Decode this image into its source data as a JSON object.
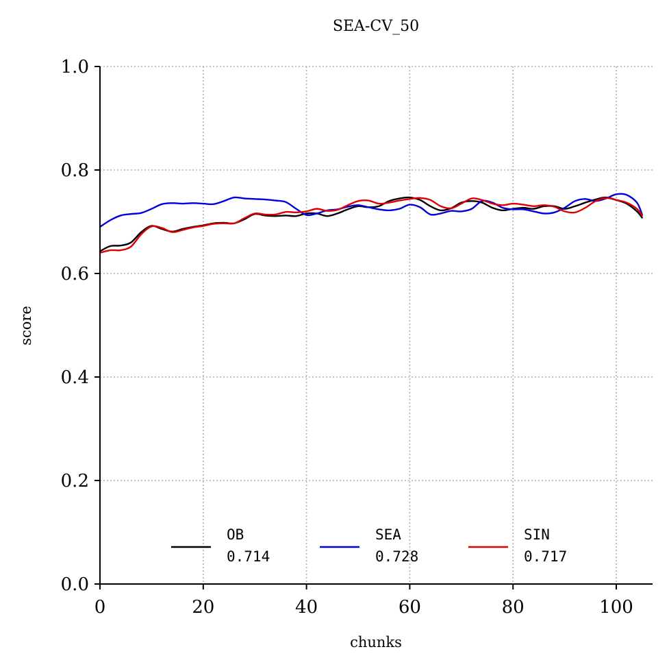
{
  "chart_data": {
    "type": "line",
    "title": "SEA-CV_50",
    "xlabel": "chunks",
    "ylabel": "score",
    "xlim": [
      0,
      107
    ],
    "ylim": [
      0.0,
      1.0
    ],
    "xticks": [
      0,
      20,
      40,
      60,
      80,
      100
    ],
    "yticks": [
      0.0,
      0.2,
      0.4,
      0.6,
      0.8,
      1.0
    ],
    "xtick_labels": [
      "0",
      "20",
      "40",
      "60",
      "80",
      "100"
    ],
    "ytick_labels": [
      "0.0",
      "0.2",
      "0.4",
      "0.6",
      "0.8",
      "1.0"
    ],
    "grid": true,
    "legend_placement": "lower-center",
    "x": [
      0,
      2,
      4,
      6,
      8,
      10,
      12,
      14,
      16,
      18,
      20,
      22,
      24,
      26,
      28,
      30,
      32,
      34,
      36,
      38,
      40,
      42,
      44,
      46,
      48,
      50,
      52,
      54,
      56,
      58,
      60,
      62,
      64,
      66,
      68,
      70,
      72,
      74,
      76,
      78,
      80,
      82,
      84,
      86,
      88,
      90,
      92,
      94,
      96,
      98,
      100,
      102,
      104,
      105
    ],
    "series": [
      {
        "name": "OB",
        "score": "0.714",
        "color": "#000000",
        "values": [
          0.643,
          0.653,
          0.654,
          0.66,
          0.68,
          0.692,
          0.686,
          0.681,
          0.686,
          0.69,
          0.693,
          0.697,
          0.698,
          0.697,
          0.705,
          0.715,
          0.712,
          0.711,
          0.712,
          0.711,
          0.716,
          0.716,
          0.711,
          0.716,
          0.724,
          0.73,
          0.728,
          0.73,
          0.74,
          0.745,
          0.747,
          0.742,
          0.73,
          0.722,
          0.726,
          0.737,
          0.74,
          0.737,
          0.727,
          0.722,
          0.725,
          0.727,
          0.725,
          0.73,
          0.73,
          0.725,
          0.73,
          0.737,
          0.743,
          0.747,
          0.742,
          0.735,
          0.72,
          0.708
        ]
      },
      {
        "name": "SEA",
        "score": "0.728",
        "color": "#0000dd",
        "values": [
          0.69,
          0.703,
          0.712,
          0.715,
          0.717,
          0.725,
          0.734,
          0.736,
          0.735,
          0.736,
          0.735,
          0.734,
          0.74,
          0.747,
          0.745,
          0.744,
          0.743,
          0.741,
          0.738,
          0.725,
          0.713,
          0.716,
          0.722,
          0.724,
          0.729,
          0.732,
          0.728,
          0.724,
          0.722,
          0.725,
          0.733,
          0.728,
          0.714,
          0.716,
          0.721,
          0.72,
          0.725,
          0.74,
          0.737,
          0.727,
          0.724,
          0.724,
          0.72,
          0.716,
          0.718,
          0.727,
          0.74,
          0.744,
          0.74,
          0.745,
          0.753,
          0.752,
          0.737,
          0.714
        ]
      },
      {
        "name": "SIN",
        "score": "0.717",
        "color": "#dd0000",
        "values": [
          0.64,
          0.645,
          0.645,
          0.652,
          0.676,
          0.691,
          0.688,
          0.68,
          0.684,
          0.689,
          0.692,
          0.696,
          0.697,
          0.697,
          0.707,
          0.716,
          0.714,
          0.714,
          0.719,
          0.718,
          0.72,
          0.725,
          0.721,
          0.723,
          0.732,
          0.74,
          0.741,
          0.735,
          0.737,
          0.741,
          0.744,
          0.746,
          0.742,
          0.73,
          0.726,
          0.735,
          0.745,
          0.742,
          0.735,
          0.732,
          0.735,
          0.733,
          0.73,
          0.732,
          0.729,
          0.72,
          0.718,
          0.727,
          0.74,
          0.746,
          0.742,
          0.737,
          0.725,
          0.712
        ]
      }
    ]
  }
}
